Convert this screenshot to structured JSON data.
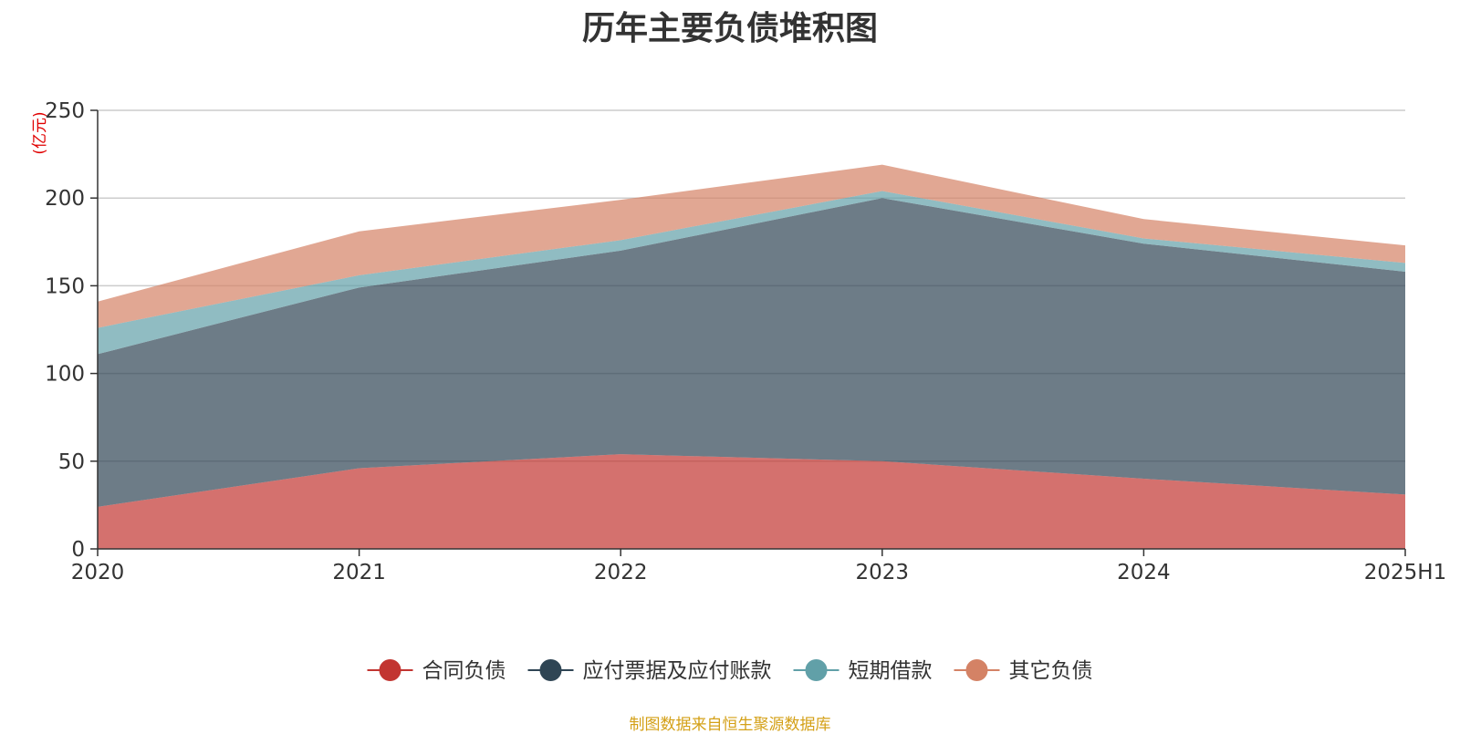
{
  "chart_data": {
    "type": "area",
    "stacked": true,
    "title": "历年主要负债堆积图",
    "unit_label": "(亿元)",
    "categories": [
      "2020",
      "2021",
      "2022",
      "2023",
      "2024",
      "2025H1"
    ],
    "ylim": [
      0,
      250
    ],
    "yticks": [
      0,
      50,
      100,
      150,
      200,
      250
    ],
    "grid": true,
    "legend_position": "bottom-center",
    "series": [
      {
        "name": "合同负债",
        "color": "#c23531",
        "values": [
          24,
          46,
          54,
          50,
          40,
          31
        ]
      },
      {
        "name": "应付票据及应付账款",
        "color": "#2f4554",
        "values": [
          87,
          103,
          116,
          150,
          134,
          127
        ]
      },
      {
        "name": "短期借款",
        "color": "#61a0a8",
        "values": [
          15,
          7,
          6,
          4,
          3,
          5
        ]
      },
      {
        "name": "其它负债",
        "color": "#d48265",
        "values": [
          15,
          25,
          23,
          15,
          11,
          10
        ]
      }
    ],
    "source": "制图数据来自恒生聚源数据库"
  }
}
